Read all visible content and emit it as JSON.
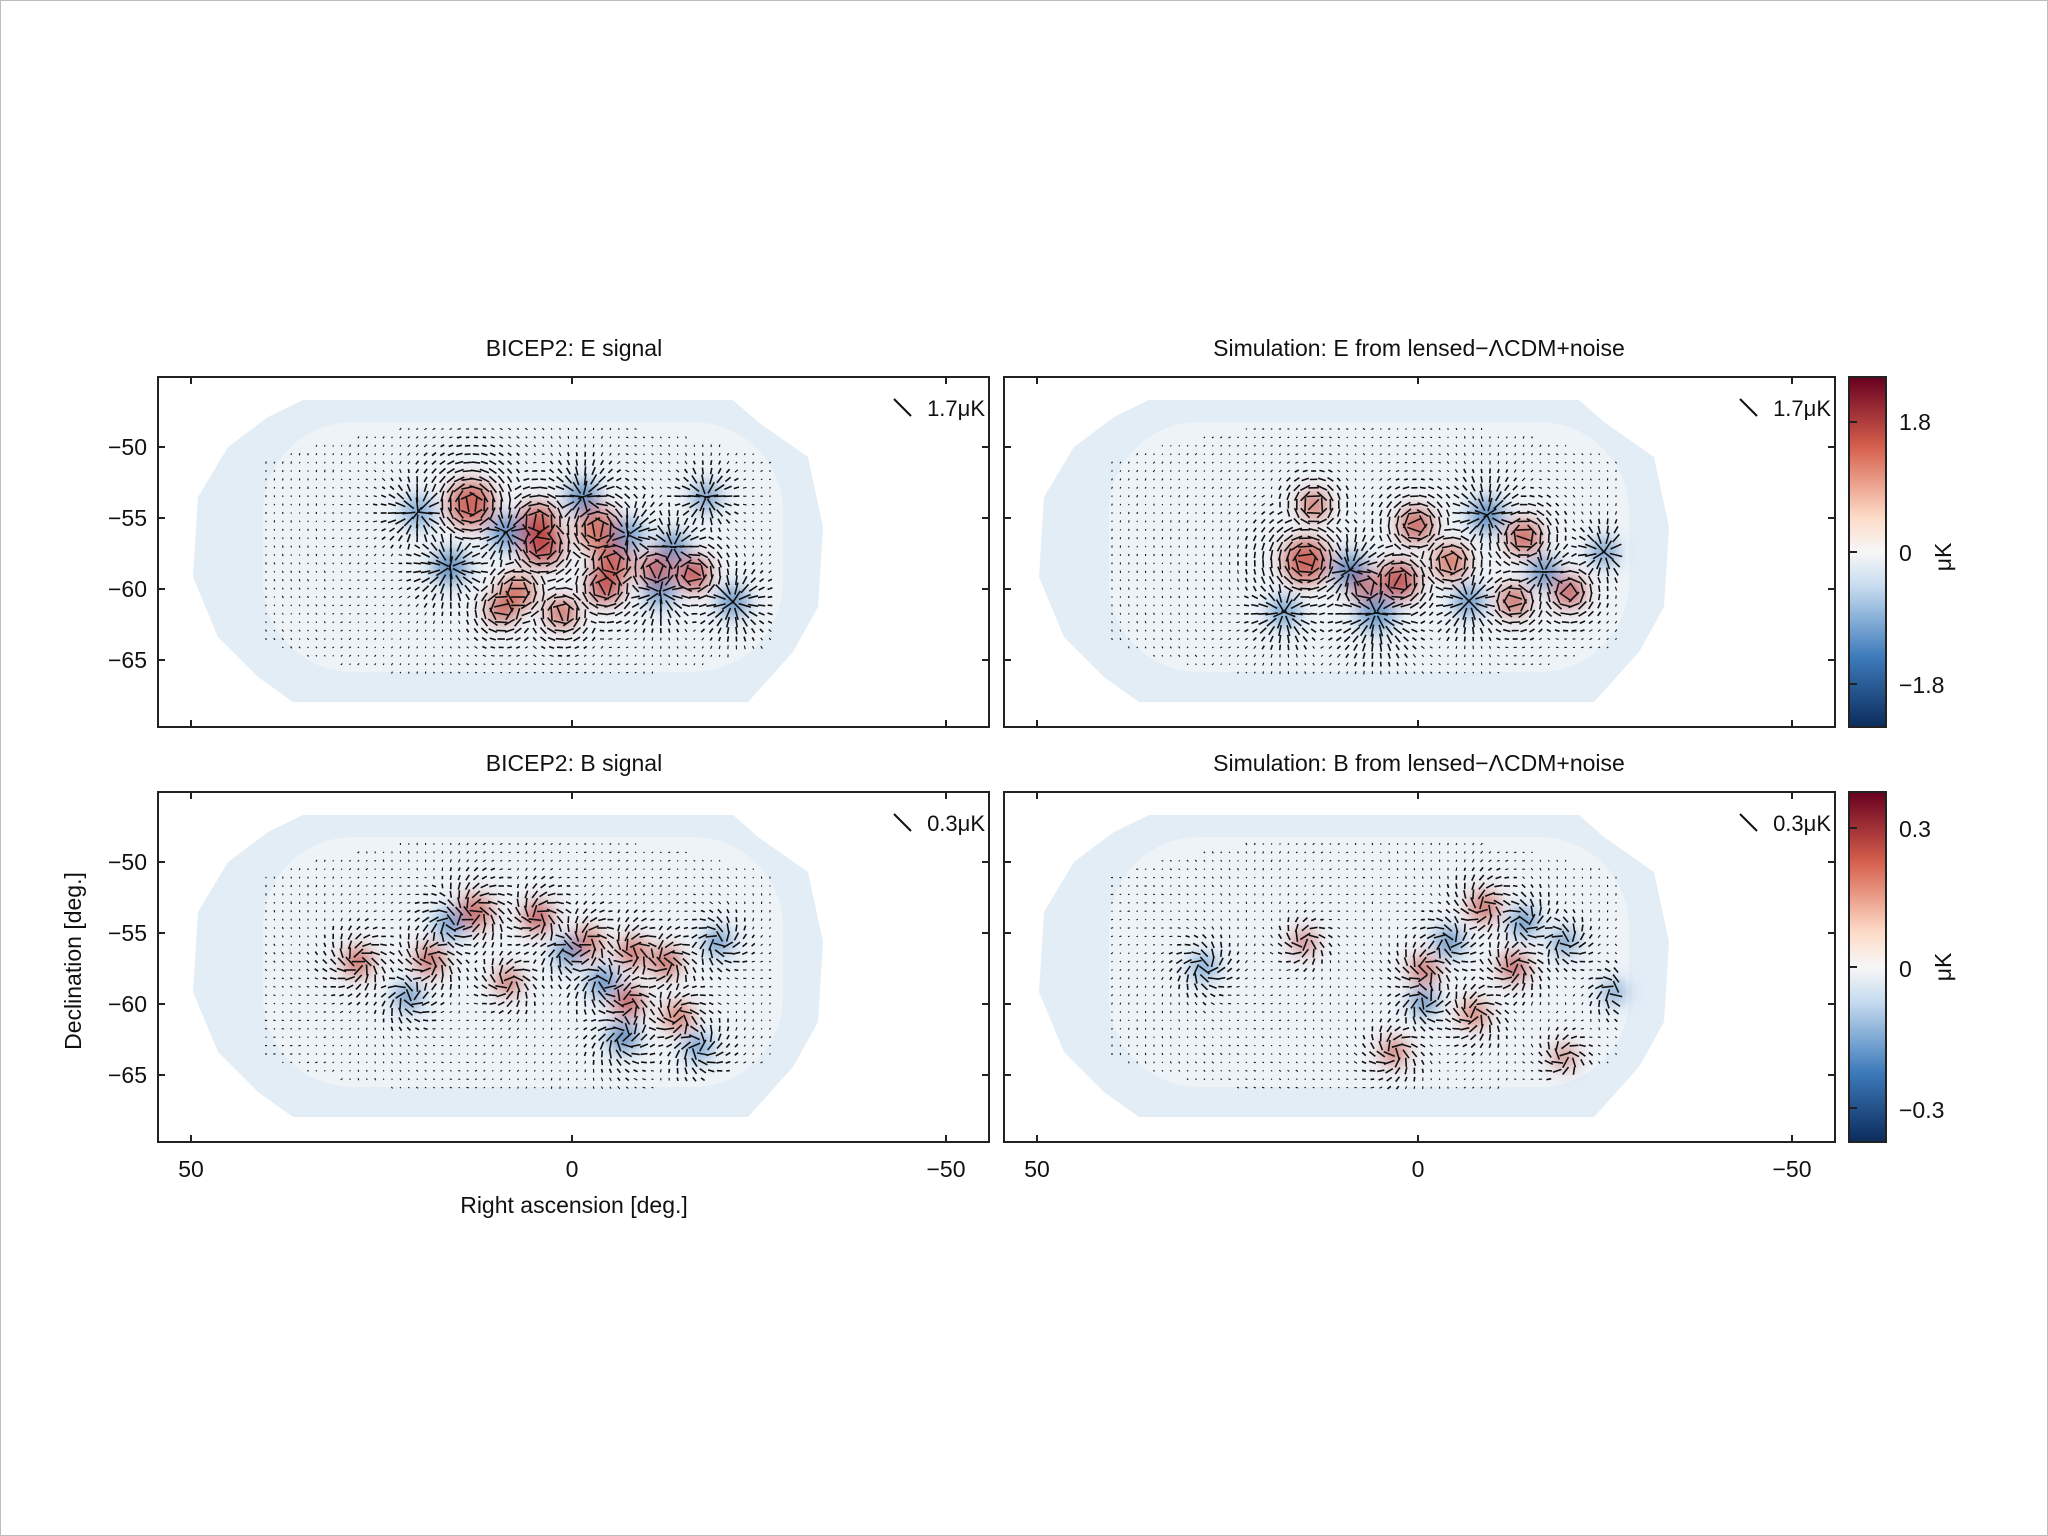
{
  "chart_data": [
    {
      "type": "heatmap",
      "title": "BICEP2: E signal",
      "scale_label": "1.7μK",
      "field": "E",
      "colorbar_range": [
        -1.8,
        1.8
      ],
      "xlim": [
        50,
        -50
      ],
      "ylim": [
        -70,
        -45
      ],
      "xticks": [
        50,
        0,
        -50
      ],
      "yticks": [
        -50,
        -55,
        -60,
        -65
      ]
    },
    {
      "type": "heatmap",
      "title": "Simulation: E from lensed−ΛCDM+noise",
      "scale_label": "1.7μK",
      "field": "E",
      "colorbar_range": [
        -1.8,
        1.8
      ],
      "xlim": [
        50,
        -50
      ],
      "ylim": [
        -70,
        -45
      ],
      "xticks": [
        50,
        0,
        -50
      ],
      "yticks": [
        -50,
        -55,
        -60,
        -65
      ]
    },
    {
      "type": "heatmap",
      "title": "BICEP2: B signal",
      "scale_label": "0.3μK",
      "field": "B",
      "colorbar_range": [
        -0.3,
        0.3
      ],
      "xlim": [
        50,
        -50
      ],
      "ylim": [
        -70,
        -45
      ],
      "xticks": [
        50,
        0,
        -50
      ],
      "yticks": [
        -50,
        -55,
        -60,
        -65
      ],
      "xlabel": "Right ascension [deg.]",
      "ylabel": "Declination [deg.]"
    },
    {
      "type": "heatmap",
      "title": "Simulation: B from lensed−ΛCDM+noise",
      "scale_label": "0.3μK",
      "field": "B",
      "colorbar_range": [
        -0.3,
        0.3
      ],
      "xlim": [
        50,
        -50
      ],
      "ylim": [
        -70,
        -45
      ],
      "xticks": [
        50,
        0,
        -50
      ],
      "yticks": [
        -50,
        -55,
        -60,
        -65
      ]
    }
  ],
  "colorbars": [
    {
      "ticks": [
        "1.8",
        "0",
        "−1.8"
      ],
      "unit": "μK"
    },
    {
      "ticks": [
        "0.3",
        "0",
        "−0.3"
      ],
      "unit": "μK"
    }
  ],
  "tick_text": {
    "x": [
      "50",
      "0",
      "−50"
    ],
    "y": [
      "−50",
      "−55",
      "−60",
      "−65"
    ]
  },
  "colors": {
    "cmap_low": "#0b2c5c",
    "cmap_mid_low": "#3d7bbb",
    "cmap_mid": "#f7f7f7",
    "cmap_mid_high": "#d6604d",
    "cmap_high": "#67001f",
    "map_fill": "#e3edf6",
    "vectors": "#111111"
  }
}
